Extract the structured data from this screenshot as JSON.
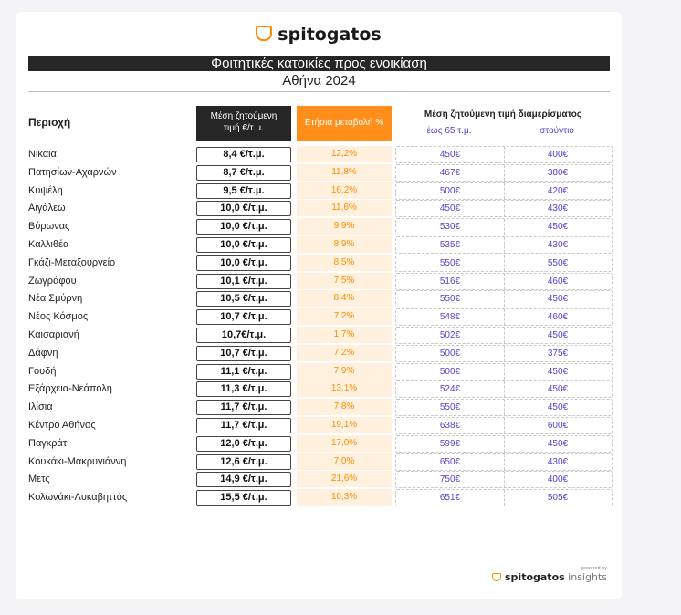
{
  "brand": {
    "logo_text": "spitogatos",
    "logo_icon": "cat-icon",
    "accent": "#ff8a00"
  },
  "title": "Φοιτητικές κατοικίες προς ενοικίαση",
  "subtitle": "Αθήνα 2024",
  "headers": {
    "area": "Περιοχή",
    "price_line1": "Μέση ζητούμενη",
    "price_line2": "τιμή €/τ.μ.",
    "change": "Ετήσια μεταβολή %",
    "apartment": "Μέση ζητούμενη τιμή διαμερίσματος",
    "apt_small": "έως 65 τ.μ.",
    "studio": "στούντιο"
  },
  "rows": [
    {
      "area": "Νίκαια",
      "price": "8,4 €/τ.μ.",
      "change": "12,2%",
      "apt": "450€",
      "studio": "400€"
    },
    {
      "area": "Πατησίων-Αχαρνών",
      "price": "8,7 €/τ.μ.",
      "change": "11,8%",
      "apt": "467€",
      "studio": "380€"
    },
    {
      "area": "Κυψέλη",
      "price": "9,5 €/τ.μ.",
      "change": "16,2%",
      "apt": "500€",
      "studio": "420€"
    },
    {
      "area": "Αιγάλεω",
      "price": "10,0 €/τ.μ.",
      "change": "11,6%",
      "apt": "450€",
      "studio": "430€"
    },
    {
      "area": "Βύρωνας",
      "price": "10,0 €/τ.μ.",
      "change": "9,9%",
      "apt": "530€",
      "studio": "450€"
    },
    {
      "area": "Καλλιθέα",
      "price": "10,0 €/τ.μ.",
      "change": "8,9%",
      "apt": "535€",
      "studio": "430€"
    },
    {
      "area": "Γκάζι-Μεταξουργείο",
      "price": "10,0 €/τ.μ.",
      "change": "8,5%",
      "apt": "550€",
      "studio": "550€"
    },
    {
      "area": "Ζωγράφου",
      "price": "10,1 €/τ.μ.",
      "change": "7,5%",
      "apt": "516€",
      "studio": "460€"
    },
    {
      "area": "Νέα Σμύρνη",
      "price": "10,5 €/τ.μ.",
      "change": "8,4%",
      "apt": "550€",
      "studio": "450€"
    },
    {
      "area": "Νέος Κόσμος",
      "price": "10,7 €/τ.μ.",
      "change": "7,2%",
      "apt": "548€",
      "studio": "460€"
    },
    {
      "area": "Καισαριανή",
      "price": "10,7€/τ.μ.",
      "change": "1,7%",
      "apt": "502€",
      "studio": "450€"
    },
    {
      "area": "Δάφνη",
      "price": "10,7 €/τ.μ.",
      "change": "7,2%",
      "apt": "500€",
      "studio": "375€"
    },
    {
      "area": "Γουδή",
      "price": "11,1 €/τ.μ.",
      "change": "7,9%",
      "apt": "500€",
      "studio": "450€"
    },
    {
      "area": "Εξάρχεια-Νεάπολη",
      "price": "11,3 €/τ.μ.",
      "change": "13,1%",
      "apt": "524€",
      "studio": "450€"
    },
    {
      "area": "Ιλίσια",
      "price": "11,7 €/τ.μ.",
      "change": "7,8%",
      "apt": "550€",
      "studio": "450€"
    },
    {
      "area": "Κέντρο Αθήνας",
      "price": "11,7 €/τ.μ.",
      "change": "19,1%",
      "apt": "638€",
      "studio": "600€"
    },
    {
      "area": "Παγκράτι",
      "price": "12,0 €/τ.μ.",
      "change": "17,0%",
      "apt": "599€",
      "studio": "450€"
    },
    {
      "area": "Κουκάκι-Μακρυγιάννη",
      "price": "12,6 €/τ.μ.",
      "change": "7,0%",
      "apt": "650€",
      "studio": "430€"
    },
    {
      "area": "Μετς",
      "price": "14,9 €/τ.μ.",
      "change": "21,6%",
      "apt": "750€",
      "studio": "400€"
    },
    {
      "area": "Κολωνάκι-Λυκαβηττός",
      "price": "15,5 €/τ.μ.",
      "change": "10,3%",
      "apt": "651€",
      "studio": "505€"
    }
  ],
  "footer": {
    "powered_by": "powered by",
    "brand": "spitogatos",
    "suffix": "insights"
  }
}
